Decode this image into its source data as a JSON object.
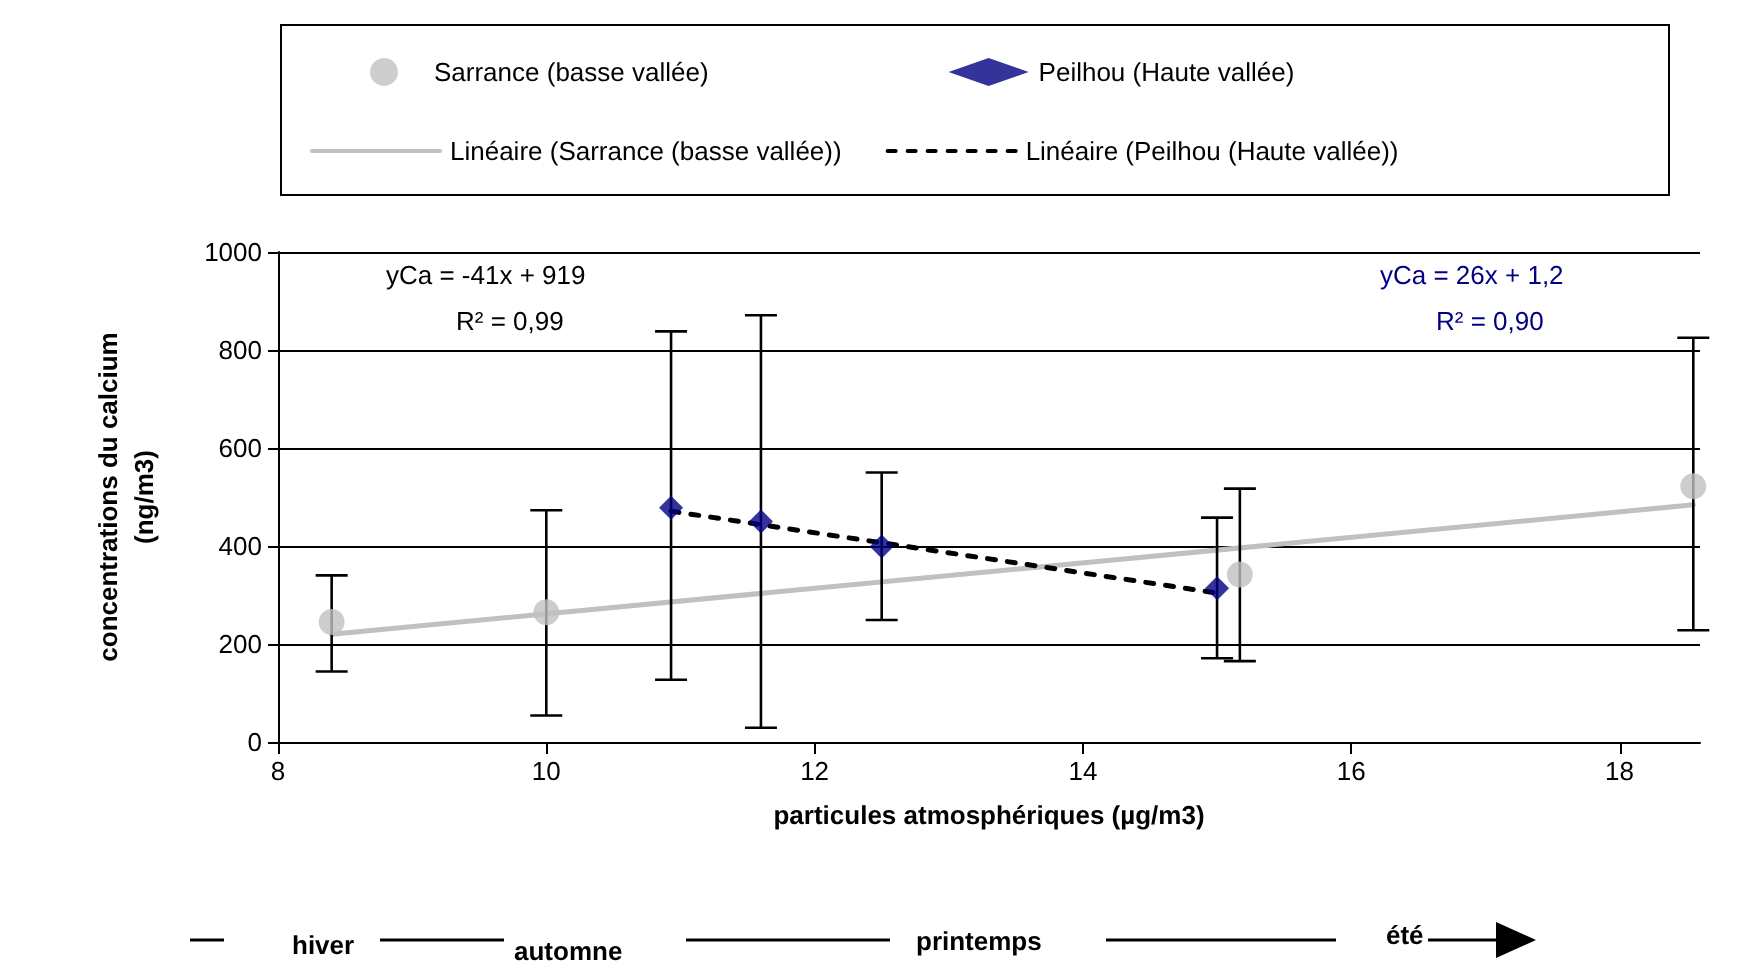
{
  "chart_data": {
    "type": "scatter",
    "xlabel": "particules atmosphériques (µg/m3)",
    "ylabel": "concentrations du calcium\n(ng/m3)",
    "xlim": [
      8,
      18.6
    ],
    "xticks": [
      8,
      10,
      12,
      14,
      16,
      18
    ],
    "ylim": [
      0,
      1000
    ],
    "yticks": [
      0,
      200,
      400,
      600,
      800,
      1000
    ],
    "grid": "y",
    "legend": "top",
    "annotations": [
      "yCa = -41x + 919",
      "R² = 0,99",
      "yCa = 26x + 1,2",
      "R² = 0,90",
      "hiver",
      "automne",
      "printemps",
      "été"
    ],
    "series": [
      {
        "name": "Sarrance (basse vallée)",
        "color": "#c0c0c0",
        "marker": "circle",
        "x": [
          8.4,
          10,
          15.17,
          18.55
        ],
        "values": [
          245,
          265,
          342,
          522
        ],
        "errors": [
          [
            144,
            340
          ],
          [
            54,
            473
          ],
          [
            165,
            517
          ],
          [
            228,
            825
          ]
        ]
      },
      {
        "name": "Peilhou (Haute vallée)",
        "color": "#000080",
        "marker": "diamond",
        "x": [
          10.93,
          11.6,
          12.5,
          15.0
        ],
        "values": [
          478,
          450,
          399,
          314
        ],
        "errors": [
          [
            127,
            838
          ],
          [
            29,
            871
          ],
          [
            249,
            550
          ],
          [
            171,
            458
          ]
        ]
      },
      {
        "name": "Linéaire (Sarrance (basse vallée))",
        "type": "line",
        "color": "#c0c0c0",
        "line_style": "solid",
        "marker": "none",
        "x": [
          8.4,
          18.55
        ],
        "values": [
          220,
          484
        ]
      },
      {
        "name": "Linéaire (Peilhou (Haute vallée))",
        "type": "line",
        "color": "#000000",
        "line_style": "dashed",
        "marker": "none",
        "x": [
          10.93,
          15.0
        ],
        "values": [
          471,
          304
        ]
      }
    ]
  }
}
